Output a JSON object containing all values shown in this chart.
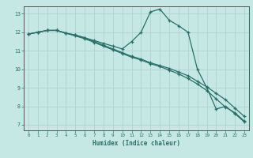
{
  "xlabel": "Humidex (Indice chaleur)",
  "xlim": [
    -0.5,
    23.5
  ],
  "ylim": [
    6.7,
    13.4
  ],
  "xticks": [
    0,
    1,
    2,
    3,
    4,
    5,
    6,
    7,
    8,
    9,
    10,
    11,
    12,
    13,
    14,
    15,
    16,
    17,
    18,
    19,
    20,
    21,
    22,
    23
  ],
  "yticks": [
    7,
    8,
    9,
    10,
    11,
    12,
    13
  ],
  "bg_color": "#c5e8e5",
  "grid_color": "#afd4d0",
  "line_color": "#2a7068",
  "spine_color": "#555555",
  "line1_x": [
    0,
    1,
    2,
    3,
    4,
    5,
    6,
    7,
    8,
    9,
    10,
    11,
    12,
    13,
    14,
    15,
    16,
    17,
    18,
    19,
    20,
    21,
    22,
    23
  ],
  "line1_y": [
    11.9,
    12.0,
    12.1,
    12.1,
    11.95,
    11.85,
    11.7,
    11.55,
    11.4,
    11.25,
    11.1,
    11.5,
    12.0,
    13.1,
    13.25,
    12.65,
    12.35,
    12.0,
    10.0,
    9.0,
    7.85,
    8.0,
    7.6,
    7.15
  ],
  "line2_x": [
    0,
    1,
    2,
    3,
    4,
    5,
    6,
    7,
    8,
    9,
    10,
    11,
    12,
    13,
    14,
    15,
    16,
    17,
    18,
    19,
    20,
    21,
    22,
    23
  ],
  "line2_y": [
    11.9,
    12.0,
    12.1,
    12.1,
    11.95,
    11.8,
    11.65,
    11.45,
    11.25,
    11.05,
    10.85,
    10.65,
    10.5,
    10.3,
    10.15,
    9.95,
    9.75,
    9.5,
    9.2,
    8.85,
    8.4,
    7.95,
    7.65,
    7.2
  ],
  "line3_x": [
    0,
    1,
    2,
    3,
    4,
    5,
    6,
    7,
    8,
    9,
    10,
    11,
    12,
    13,
    14,
    15,
    16,
    17,
    18,
    19,
    20,
    21,
    22,
    23
  ],
  "line3_y": [
    11.9,
    12.0,
    12.1,
    12.1,
    11.95,
    11.85,
    11.7,
    11.5,
    11.3,
    11.1,
    10.9,
    10.7,
    10.55,
    10.35,
    10.2,
    10.05,
    9.85,
    9.65,
    9.35,
    9.05,
    8.7,
    8.35,
    7.9,
    7.45
  ]
}
